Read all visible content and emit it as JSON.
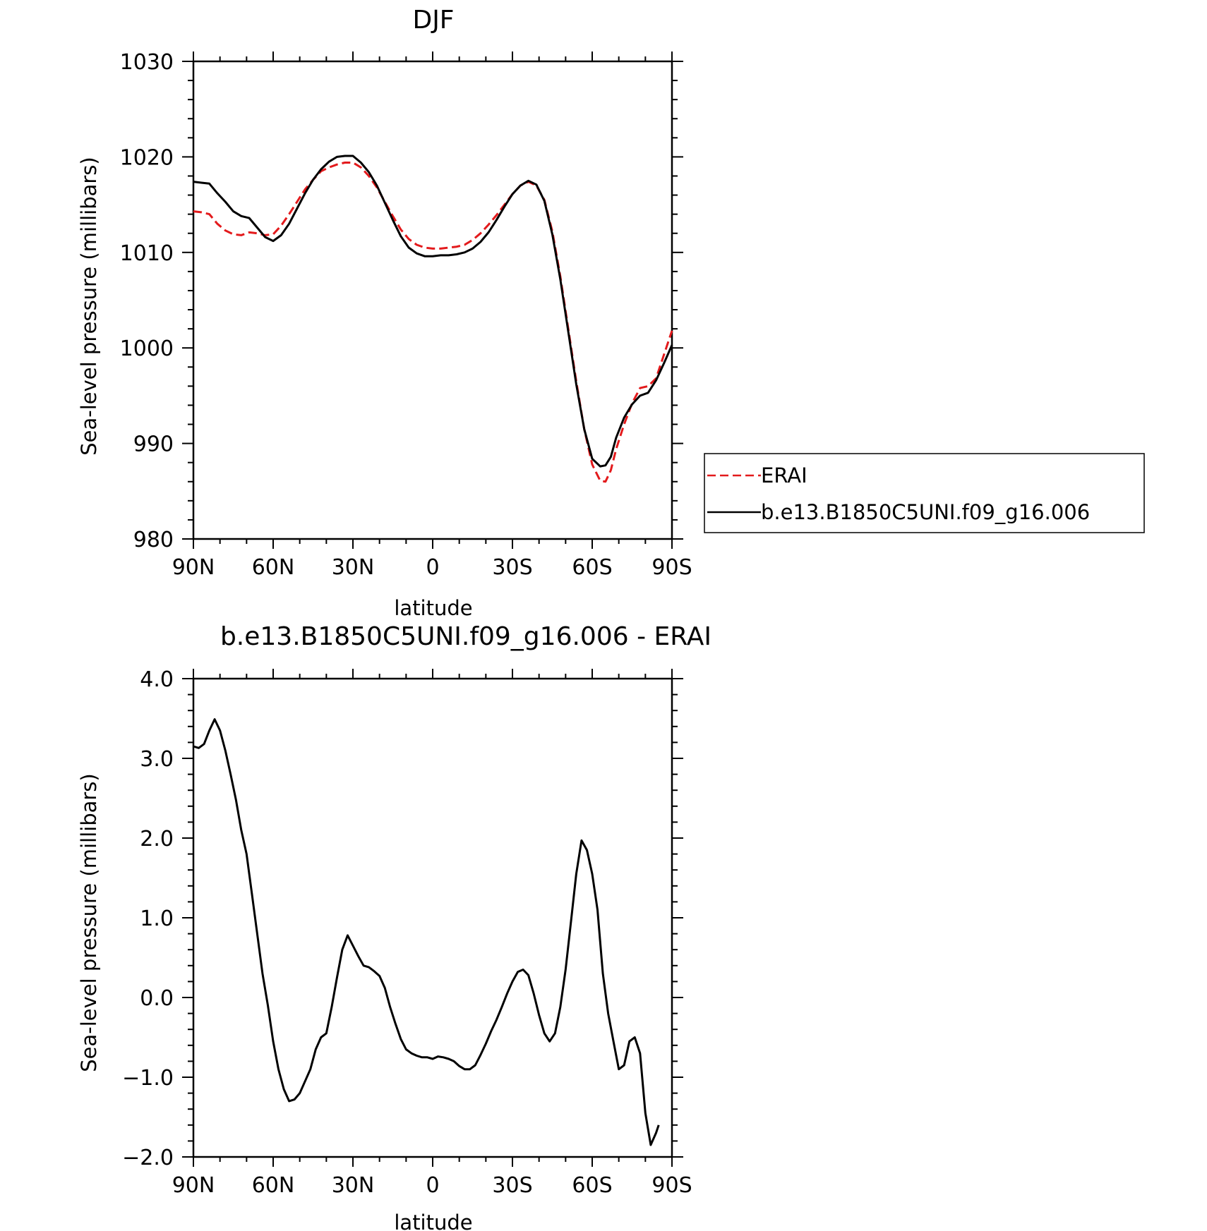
{
  "chart_data": [
    {
      "type": "line",
      "title": "DJF",
      "xlabel": "latitude",
      "ylabel": "Sea-level pressure (millibars)",
      "xlim": [
        90,
        -90
      ],
      "ylim": [
        980,
        1030
      ],
      "x_ticks": [
        {
          "value": 90,
          "label": "90N"
        },
        {
          "value": 60,
          "label": "60N"
        },
        {
          "value": 30,
          "label": "30N"
        },
        {
          "value": 0,
          "label": "0"
        },
        {
          "value": -30,
          "label": "30S"
        },
        {
          "value": -60,
          "label": "60S"
        },
        {
          "value": -90,
          "label": "90S"
        }
      ],
      "y_ticks": [
        {
          "value": 980,
          "label": "980"
        },
        {
          "value": 990,
          "label": "990"
        },
        {
          "value": 1000,
          "label": "1000"
        },
        {
          "value": 1010,
          "label": "1010"
        },
        {
          "value": 1020,
          "label": "1020"
        },
        {
          "value": 1030,
          "label": "1030"
        }
      ],
      "grid": false,
      "legend_position": "right",
      "legend": [
        {
          "label": "ERAI",
          "color": "#e31a1c",
          "style": "dashed"
        },
        {
          "label": "b.e13.B1850C5UNI.f09_g16.006",
          "color": "#000000",
          "style": "solid"
        }
      ],
      "series": [
        {
          "name": "ERAI",
          "color": "#e31a1c",
          "style": "dashed",
          "points": [
            [
              90,
              1014.3
            ],
            [
              87,
              1014.2
            ],
            [
              84,
              1014.0
            ],
            [
              81,
              1013.0
            ],
            [
              78,
              1012.3
            ],
            [
              75,
              1011.9
            ],
            [
              72,
              1011.8
            ],
            [
              69,
              1012.1
            ],
            [
              66,
              1012.0
            ],
            [
              63,
              1011.8
            ],
            [
              60,
              1011.9
            ],
            [
              57,
              1012.8
            ],
            [
              54,
              1014.0
            ],
            [
              51,
              1015.3
            ],
            [
              48,
              1016.6
            ],
            [
              45,
              1017.6
            ],
            [
              42,
              1018.5
            ],
            [
              39,
              1018.9
            ],
            [
              36,
              1019.2
            ],
            [
              33,
              1019.4
            ],
            [
              30,
              1019.4
            ],
            [
              27,
              1018.9
            ],
            [
              24,
              1018.0
            ],
            [
              21,
              1016.8
            ],
            [
              18,
              1015.3
            ],
            [
              15,
              1013.8
            ],
            [
              12,
              1012.4
            ],
            [
              9,
              1011.4
            ],
            [
              6,
              1010.8
            ],
            [
              3,
              1010.5
            ],
            [
              0,
              1010.4
            ],
            [
              -3,
              1010.4
            ],
            [
              -6,
              1010.5
            ],
            [
              -9,
              1010.6
            ],
            [
              -12,
              1010.8
            ],
            [
              -15,
              1011.3
            ],
            [
              -18,
              1012.0
            ],
            [
              -21,
              1012.9
            ],
            [
              -24,
              1013.9
            ],
            [
              -27,
              1015.0
            ],
            [
              -30,
              1016.1
            ],
            [
              -33,
              1017.0
            ],
            [
              -36,
              1017.4
            ],
            [
              -39,
              1017.0
            ],
            [
              -42,
              1015.5
            ],
            [
              -45,
              1012.2
            ],
            [
              -48,
              1007.5
            ],
            [
              -51,
              1002.0
            ],
            [
              -54,
              996.5
            ],
            [
              -57,
              991.5
            ],
            [
              -60,
              987.8
            ],
            [
              -63,
              986.1
            ],
            [
              -65,
              986.0
            ],
            [
              -67,
              987.2
            ],
            [
              -69,
              989.4
            ],
            [
              -72,
              992.0
            ],
            [
              -75,
              994.2
            ],
            [
              -78,
              995.8
            ],
            [
              -81,
              996.0
            ],
            [
              -84,
              996.8
            ],
            [
              -87,
              999.3
            ],
            [
              -90,
              1001.8
            ]
          ]
        },
        {
          "name": "b.e13.B1850C5UNI.f09_g16.006",
          "color": "#000000",
          "style": "solid",
          "points": [
            [
              90,
              1017.4
            ],
            [
              87,
              1017.3
            ],
            [
              84,
              1017.2
            ],
            [
              81,
              1016.2
            ],
            [
              78,
              1015.3
            ],
            [
              75,
              1014.3
            ],
            [
              72,
              1013.8
            ],
            [
              69,
              1013.6
            ],
            [
              66,
              1012.6
            ],
            [
              63,
              1011.6
            ],
            [
              60,
              1011.2
            ],
            [
              57,
              1011.8
            ],
            [
              54,
              1013.0
            ],
            [
              51,
              1014.6
            ],
            [
              48,
              1016.2
            ],
            [
              45,
              1017.6
            ],
            [
              42,
              1018.7
            ],
            [
              39,
              1019.5
            ],
            [
              36,
              1020.0
            ],
            [
              33,
              1020.1
            ],
            [
              30,
              1020.1
            ],
            [
              27,
              1019.4
            ],
            [
              24,
              1018.4
            ],
            [
              21,
              1017.0
            ],
            [
              18,
              1015.2
            ],
            [
              15,
              1013.4
            ],
            [
              12,
              1011.7
            ],
            [
              9,
              1010.5
            ],
            [
              6,
              1009.9
            ],
            [
              3,
              1009.6
            ],
            [
              0,
              1009.6
            ],
            [
              -3,
              1009.7
            ],
            [
              -6,
              1009.7
            ],
            [
              -9,
              1009.8
            ],
            [
              -12,
              1010.0
            ],
            [
              -15,
              1010.4
            ],
            [
              -18,
              1011.1
            ],
            [
              -21,
              1012.1
            ],
            [
              -24,
              1013.4
            ],
            [
              -27,
              1014.8
            ],
            [
              -30,
              1016.1
            ],
            [
              -33,
              1017.0
            ],
            [
              -36,
              1017.5
            ],
            [
              -39,
              1017.1
            ],
            [
              -42,
              1015.4
            ],
            [
              -45,
              1011.9
            ],
            [
              -48,
              1007.2
            ],
            [
              -51,
              1001.7
            ],
            [
              -54,
              996.2
            ],
            [
              -57,
              991.5
            ],
            [
              -60,
              988.4
            ],
            [
              -63,
              987.6
            ],
            [
              -65,
              987.7
            ],
            [
              -67,
              988.6
            ],
            [
              -69,
              990.6
            ],
            [
              -72,
              992.7
            ],
            [
              -75,
              994.1
            ],
            [
              -78,
              995.0
            ],
            [
              -81,
              995.3
            ],
            [
              -84,
              996.6
            ],
            [
              -87,
              998.4
            ],
            [
              -90,
              1000.3
            ]
          ]
        }
      ]
    },
    {
      "type": "line",
      "title": "b.e13.B1850C5UNI.f09_g16.006 - ERAI",
      "xlabel": "latitude",
      "ylabel": "Sea-level pressure (millibars)",
      "xlim": [
        90,
        -90
      ],
      "ylim": [
        -2.0,
        4.0
      ],
      "x_ticks": [
        {
          "value": 90,
          "label": "90N"
        },
        {
          "value": 60,
          "label": "60N"
        },
        {
          "value": 30,
          "label": "30N"
        },
        {
          "value": 0,
          "label": "0"
        },
        {
          "value": -30,
          "label": "30S"
        },
        {
          "value": -60,
          "label": "60S"
        },
        {
          "value": -90,
          "label": "90S"
        }
      ],
      "y_ticks": [
        {
          "value": -2.0,
          "label": "−2.0"
        },
        {
          "value": -1.0,
          "label": "−1.0"
        },
        {
          "value": 0.0,
          "label": "0.0"
        },
        {
          "value": 1.0,
          "label": "1.0"
        },
        {
          "value": 2.0,
          "label": "2.0"
        },
        {
          "value": 3.0,
          "label": "3.0"
        },
        {
          "value": 4.0,
          "label": "4.0"
        }
      ],
      "grid": false,
      "series": [
        {
          "color": "#000000",
          "style": "solid",
          "points": [
            [
              90,
              3.15
            ],
            [
              88,
              3.13
            ],
            [
              86,
              3.18
            ],
            [
              84,
              3.35
            ],
            [
              82,
              3.49
            ],
            [
              80,
              3.35
            ],
            [
              78,
              3.1
            ],
            [
              76,
              2.8
            ],
            [
              74,
              2.48
            ],
            [
              72,
              2.1
            ],
            [
              70,
              1.8
            ],
            [
              68,
              1.3
            ],
            [
              66,
              0.8
            ],
            [
              64,
              0.3
            ],
            [
              62,
              -0.1
            ],
            [
              60,
              -0.55
            ],
            [
              58,
              -0.9
            ],
            [
              56,
              -1.15
            ],
            [
              54,
              -1.3
            ],
            [
              52,
              -1.28
            ],
            [
              50,
              -1.2
            ],
            [
              48,
              -1.05
            ],
            [
              46,
              -0.9
            ],
            [
              44,
              -0.65
            ],
            [
              42,
              -0.5
            ],
            [
              40,
              -0.45
            ],
            [
              38,
              -0.12
            ],
            [
              36,
              0.25
            ],
            [
              34,
              0.6
            ],
            [
              32,
              0.78
            ],
            [
              30,
              0.65
            ],
            [
              28,
              0.52
            ],
            [
              26,
              0.4
            ],
            [
              24,
              0.38
            ],
            [
              22,
              0.33
            ],
            [
              20,
              0.27
            ],
            [
              18,
              0.12
            ],
            [
              16,
              -0.12
            ],
            [
              14,
              -0.33
            ],
            [
              12,
              -0.52
            ],
            [
              10,
              -0.65
            ],
            [
              8,
              -0.7
            ],
            [
              6,
              -0.73
            ],
            [
              4,
              -0.75
            ],
            [
              2,
              -0.75
            ],
            [
              0,
              -0.77
            ],
            [
              -2,
              -0.74
            ],
            [
              -4,
              -0.75
            ],
            [
              -6,
              -0.77
            ],
            [
              -8,
              -0.8
            ],
            [
              -10,
              -0.86
            ],
            [
              -12,
              -0.9
            ],
            [
              -14,
              -0.9
            ],
            [
              -16,
              -0.85
            ],
            [
              -18,
              -0.72
            ],
            [
              -20,
              -0.58
            ],
            [
              -22,
              -0.42
            ],
            [
              -24,
              -0.28
            ],
            [
              -26,
              -0.12
            ],
            [
              -28,
              0.05
            ],
            [
              -30,
              0.2
            ],
            [
              -32,
              0.32
            ],
            [
              -34,
              0.35
            ],
            [
              -36,
              0.28
            ],
            [
              -38,
              0.05
            ],
            [
              -40,
              -0.22
            ],
            [
              -42,
              -0.45
            ],
            [
              -44,
              -0.55
            ],
            [
              -46,
              -0.45
            ],
            [
              -48,
              -0.12
            ],
            [
              -50,
              0.35
            ],
            [
              -52,
              0.95
            ],
            [
              -54,
              1.55
            ],
            [
              -56,
              1.97
            ],
            [
              -58,
              1.85
            ],
            [
              -60,
              1.55
            ],
            [
              -62,
              1.1
            ],
            [
              -64,
              0.3
            ],
            [
              -66,
              -0.2
            ],
            [
              -68,
              -0.55
            ],
            [
              -70,
              -0.9
            ],
            [
              -72,
              -0.85
            ],
            [
              -74,
              -0.55
            ],
            [
              -76,
              -0.5
            ],
            [
              -78,
              -0.7
            ],
            [
              -80,
              -1.45
            ],
            [
              -82,
              -1.85
            ],
            [
              -84,
              -1.7
            ],
            [
              -85,
              -1.6
            ]
          ]
        }
      ]
    }
  ]
}
